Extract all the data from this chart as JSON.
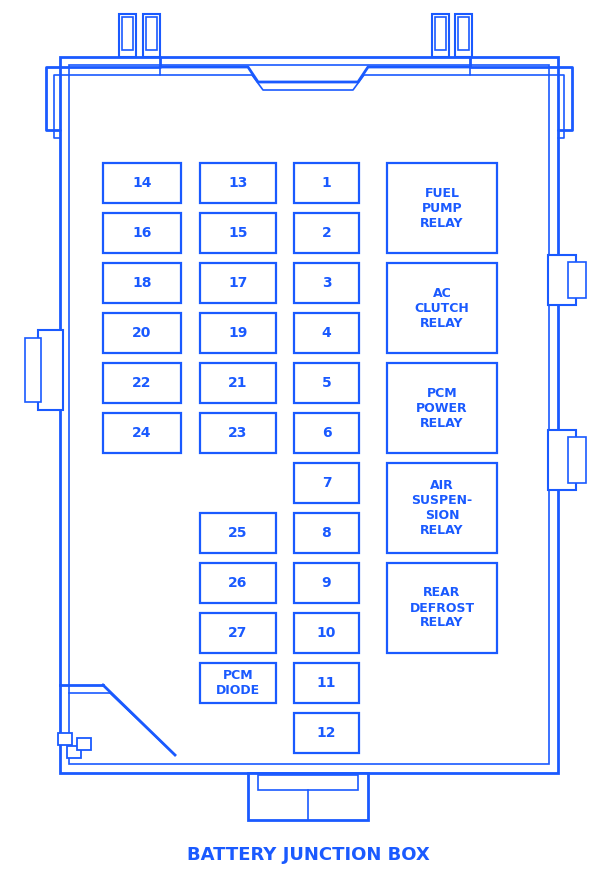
{
  "title": "BATTERY JUNCTION BOX",
  "bg_color": "#ffffff",
  "line_color": "#1a5aff",
  "text_color": "#1a5aff",
  "fig_width": 6.16,
  "fig_height": 8.96,
  "small_fuses_col0": [
    {
      "label": "14",
      "row": 0
    },
    {
      "label": "16",
      "row": 1
    },
    {
      "label": "18",
      "row": 2
    },
    {
      "label": "20",
      "row": 3
    },
    {
      "label": "22",
      "row": 4
    },
    {
      "label": "24",
      "row": 5
    }
  ],
  "small_fuses_col1": [
    {
      "label": "13",
      "row": 0
    },
    {
      "label": "15",
      "row": 1
    },
    {
      "label": "17",
      "row": 2
    },
    {
      "label": "19",
      "row": 3
    },
    {
      "label": "21",
      "row": 4
    },
    {
      "label": "23",
      "row": 5
    },
    {
      "label": "25",
      "row": 7
    },
    {
      "label": "26",
      "row": 8
    },
    {
      "label": "27",
      "row": 9
    }
  ],
  "small_fuses_col2": [
    {
      "label": "1",
      "row": 0
    },
    {
      "label": "2",
      "row": 1
    },
    {
      "label": "3",
      "row": 2
    },
    {
      "label": "4",
      "row": 3
    },
    {
      "label": "5",
      "row": 4
    },
    {
      "label": "6",
      "row": 5
    },
    {
      "label": "7",
      "row": 6
    },
    {
      "label": "8",
      "row": 7
    },
    {
      "label": "9",
      "row": 8
    },
    {
      "label": "10",
      "row": 9
    },
    {
      "label": "11",
      "row": 10
    },
    {
      "label": "12",
      "row": 11
    }
  ],
  "relay_labels": [
    "FUEL\nPUMP\nRELAY",
    "AC\nCLUTCH\nRELAY",
    "PCM\nPOWER\nRELAY",
    "AIR\nSUSPEN-\nSION\nRELAY",
    "REAR\nDEFROST\nRELAY"
  ],
  "pcm_diode_label": "PCM\nDIODE"
}
